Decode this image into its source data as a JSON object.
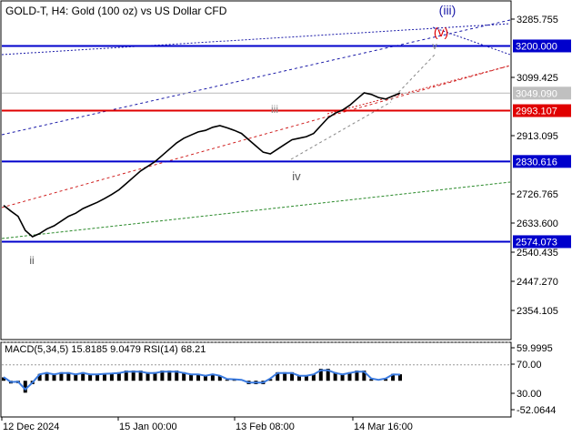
{
  "header": {
    "title": "GOLD-T, H4:  Gold (100 oz) vs US Dollar CFD"
  },
  "chart_data": {
    "type": "line",
    "symbol": "GOLD-T",
    "timeframe": "H4",
    "description": "Gold (100 oz) vs US Dollar CFD",
    "price_ticks": [
      3285.755,
      3099.425,
      2913.095,
      2726.765,
      2633.6,
      2540.435,
      2447.27,
      2354.105
    ],
    "x_ticks": [
      "12 Dec 2024",
      "15 Jan 00:00",
      "13 Feb 08:00",
      "14 Mar 16:00"
    ],
    "current_price": 3049.09,
    "price_series": [
      2690,
      2672,
      2655,
      2610,
      2590,
      2600,
      2615,
      2625,
      2640,
      2655,
      2665,
      2680,
      2690,
      2700,
      2712,
      2725,
      2740,
      2760,
      2780,
      2800,
      2815,
      2830,
      2850,
      2870,
      2890,
      2905,
      2915,
      2925,
      2930,
      2940,
      2945,
      2938,
      2930,
      2920,
      2900,
      2880,
      2860,
      2855,
      2870,
      2885,
      2900,
      2905,
      2910,
      2920,
      2945,
      2970,
      2985,
      2995,
      3010,
      3030,
      3050,
      3045,
      3035,
      3030,
      3040,
      3049
    ],
    "horizontal_levels": [
      {
        "price": 3200.0,
        "label": "3200.000",
        "color": "#0000cc"
      },
      {
        "price": 2993.107,
        "label": "2993.107",
        "color": "#e00000"
      },
      {
        "price": 2830.616,
        "label": "2830.616",
        "color": "#0000cc"
      },
      {
        "price": 2574.073,
        "label": "2574.073",
        "color": "#0000cc"
      }
    ],
    "wave_labels": [
      {
        "text": "ii",
        "color": "#555555"
      },
      {
        "text": "iii",
        "color": "#888888"
      },
      {
        "text": "iv",
        "color": "#555555"
      },
      {
        "text": "v",
        "color": "#888888"
      },
      {
        "text": "(v)",
        "color": "#e00000"
      },
      {
        "text": "(iii)",
        "color": "#1a1aa8"
      }
    ],
    "indicator": {
      "label": "MACD(5,34,5) 15.8185 9.0479 RSI(14) 68.21",
      "ticks": [
        "59.9995",
        "70.00",
        "30.00",
        "-52.0644"
      ],
      "range": [
        -52.0644,
        59.9995
      ]
    }
  },
  "colors": {
    "price_line": "#000000",
    "red_level": "#e00000",
    "blue_level": "#0000cc",
    "macd_signal": "#3b7be0"
  }
}
